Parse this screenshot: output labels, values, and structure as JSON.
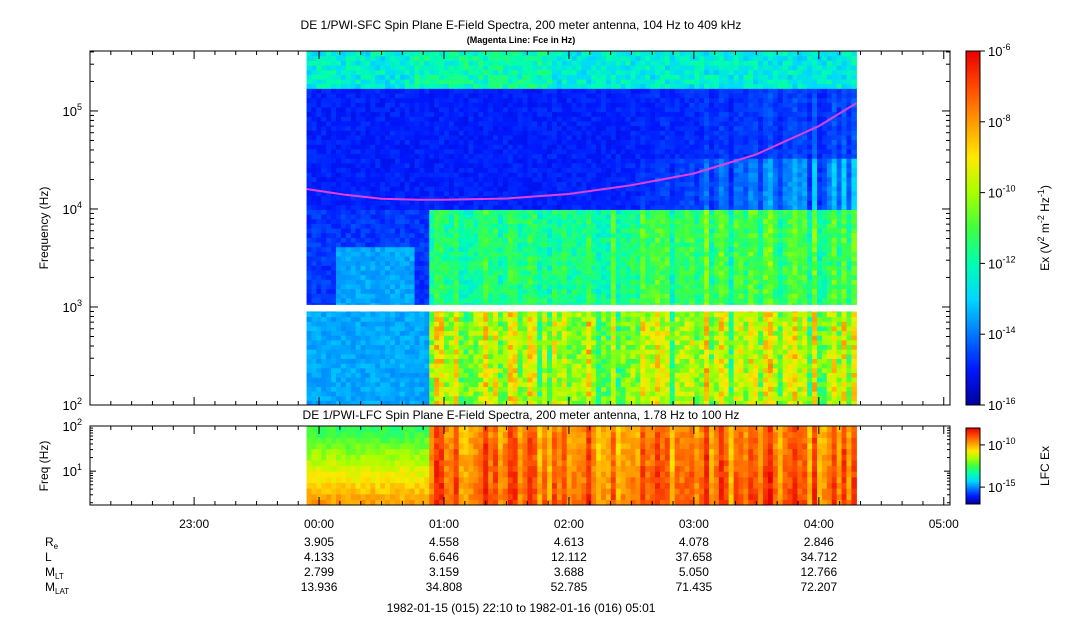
{
  "chart_data": [
    {
      "type": "heatmap",
      "title": "DE 1/PWI-SFC  Spin Plane E-Field Spectra, 200 meter antenna, 104 Hz to 409 kHz",
      "subtitle": "(Magenta Line: Fce in Hz)",
      "ylabel": "Frequency (Hz)",
      "yscale": "log",
      "ylim": [
        100,
        409000
      ],
      "yticks": [
        {
          "base": "10",
          "exp": "2"
        },
        {
          "base": "10",
          "exp": "3"
        },
        {
          "base": "10",
          "exp": "4"
        },
        {
          "base": "10",
          "exp": "5"
        }
      ],
      "data_time_range_hours": [
        23.9,
        28.3
      ],
      "gap_hz": [
        900,
        1050
      ],
      "fce_line": {
        "name": "Fce in Hz",
        "color": "#e040e0",
        "time_hours": [
          23.9,
          24.2,
          24.5,
          24.8,
          25.0,
          25.5,
          26.0,
          26.5,
          27.0,
          27.5,
          28.0,
          28.3
        ],
        "values_hz": [
          16000,
          14000,
          12700,
          12400,
          12400,
          12800,
          14200,
          17500,
          23000,
          36000,
          70000,
          120000
        ]
      },
      "colorbar": {
        "label_parts": [
          "Ex (V",
          "2",
          " m",
          "-2",
          " Hz",
          "-1",
          ")"
        ],
        "scale": "log",
        "range": [
          1e-16,
          1e-06
        ],
        "ticks": [
          {
            "base": "10",
            "exp": "-6"
          },
          {
            "base": "10",
            "exp": "-8"
          },
          {
            "base": "10",
            "exp": "-10"
          },
          {
            "base": "10",
            "exp": "-12"
          },
          {
            "base": "10",
            "exp": "-14"
          },
          {
            "base": "10",
            "exp": "-16"
          }
        ]
      }
    },
    {
      "type": "heatmap",
      "title": "DE 1/PWI-LFC  Spin Plane E-Field Spectra, 200 meter antenna, 1.78 Hz to 100 Hz",
      "ylabel": "Freq (Hz)",
      "yscale": "log",
      "ylim": [
        1.78,
        100
      ],
      "yticks": [
        {
          "base": "10",
          "exp": "1"
        },
        {
          "base": "10",
          "exp": "2"
        }
      ],
      "data_time_range_hours": [
        23.9,
        28.3
      ],
      "colorbar": {
        "label": "LFC Ex",
        "scale": "log",
        "range": [
          1e-17,
          1e-08
        ],
        "ticks": [
          {
            "base": "10",
            "exp": "-10"
          },
          {
            "base": "10",
            "exp": "-15"
          }
        ]
      }
    }
  ],
  "time_axis": {
    "xlim_hours": [
      22.1667,
      29.05
    ],
    "labels": [
      {
        "h": 23,
        "text": "23:00"
      },
      {
        "h": 24,
        "text": "00:00"
      },
      {
        "h": 25,
        "text": "01:00"
      },
      {
        "h": 26,
        "text": "02:00"
      },
      {
        "h": 27,
        "text": "03:00"
      },
      {
        "h": 28,
        "text": "04:00"
      },
      {
        "h": 29,
        "text": "05:00"
      }
    ]
  },
  "ephemeris": {
    "rows": [
      {
        "label": "R",
        "sub": "e",
        "values": [
          "3.905",
          "4.558",
          "4.613",
          "4.078",
          "2.846"
        ]
      },
      {
        "label": "L",
        "sub": "",
        "values": [
          "4.133",
          "6.646",
          "12.112",
          "37.658",
          "34.712"
        ]
      },
      {
        "label": "M",
        "sub": "LT",
        "values": [
          "2.799",
          "3.159",
          "3.688",
          "5.050",
          "12.766"
        ]
      },
      {
        "label": "M",
        "sub": "LAT",
        "values": [
          "13.936",
          "34.808",
          "52.785",
          "71.435",
          "72.207"
        ]
      }
    ]
  },
  "date_range": "1982-01-15 (015) 22:10 to 1982-01-16 (016) 05:01",
  "colors": {
    "background": "#ffffff",
    "fce_line": "#e040e0"
  }
}
